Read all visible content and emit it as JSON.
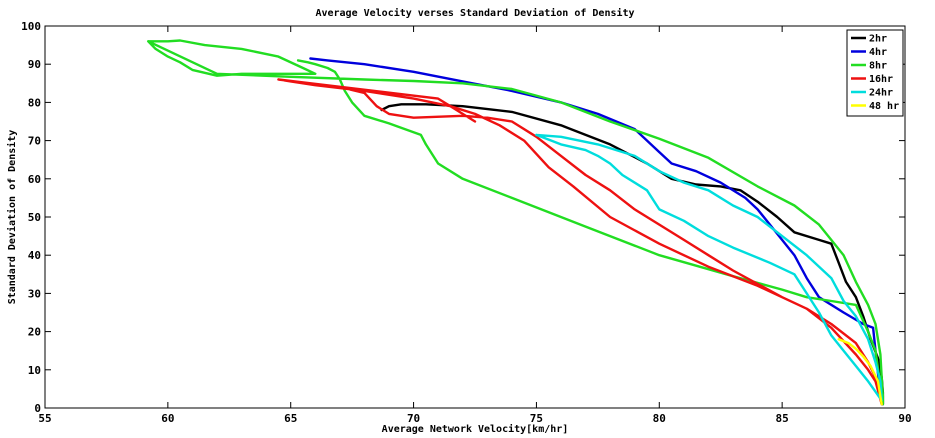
{
  "chart_data": {
    "type": "line",
    "title": "Average Velocity verses Standard Deviation of Density",
    "xlabel": "Average Network Velocity[km/hr]",
    "ylabel": "Standard Deviation of Density",
    "xlim": [
      55,
      90
    ],
    "ylim": [
      0,
      100
    ],
    "xticks": [
      55,
      60,
      65,
      70,
      75,
      80,
      85,
      90
    ],
    "yticks": [
      0,
      10,
      20,
      30,
      40,
      50,
      60,
      70,
      80,
      90,
      100
    ],
    "grid": false,
    "legend_position": "top-right",
    "series": [
      {
        "name": "2hr",
        "color": "#000000",
        "points": [
          [
            68.7,
            78
          ],
          [
            69,
            79
          ],
          [
            69.5,
            79.5
          ],
          [
            70.5,
            79.5
          ],
          [
            72,
            79
          ],
          [
            74,
            77.5
          ],
          [
            76,
            74
          ],
          [
            78,
            69
          ],
          [
            79.5,
            64
          ],
          [
            80.5,
            60
          ],
          [
            81.5,
            58.5
          ],
          [
            82.5,
            58
          ],
          [
            83.3,
            57
          ],
          [
            84,
            54
          ],
          [
            84.8,
            50
          ],
          [
            85.5,
            46
          ],
          [
            86.5,
            44
          ],
          [
            87,
            43
          ],
          [
            87.3,
            38
          ],
          [
            87.6,
            33
          ],
          [
            88,
            29
          ],
          [
            88.3,
            24
          ],
          [
            88.6,
            18
          ],
          [
            88.9,
            13
          ],
          [
            89.05,
            8
          ],
          [
            89.1,
            4
          ],
          [
            89.1,
            1
          ]
        ]
      },
      {
        "name": "4hr",
        "color": "#0000dd",
        "points": [
          [
            65.8,
            91.5
          ],
          [
            66.5,
            91
          ],
          [
            68,
            90
          ],
          [
            70,
            88
          ],
          [
            72,
            85.5
          ],
          [
            74,
            83
          ],
          [
            76,
            80
          ],
          [
            77.5,
            77
          ],
          [
            79,
            73
          ],
          [
            80,
            67
          ],
          [
            80.5,
            64
          ],
          [
            81.5,
            62
          ],
          [
            82.5,
            59
          ],
          [
            83.5,
            55
          ],
          [
            84,
            52
          ],
          [
            84.5,
            48
          ],
          [
            85,
            44
          ],
          [
            85.5,
            40
          ],
          [
            86,
            34
          ],
          [
            86.5,
            29
          ],
          [
            87.5,
            25
          ],
          [
            88.3,
            22
          ],
          [
            88.7,
            21
          ],
          [
            88.8,
            15
          ],
          [
            88.9,
            9
          ],
          [
            89,
            4
          ],
          [
            89.05,
            1
          ]
        ]
      },
      {
        "name": "8hr",
        "color": "#22dd22",
        "points": [
          [
            59.2,
            96
          ],
          [
            60,
            96
          ],
          [
            60.5,
            96.2
          ],
          [
            61.5,
            95
          ],
          [
            63,
            94
          ],
          [
            64.5,
            92
          ],
          [
            65.5,
            89
          ],
          [
            66,
            87.5
          ],
          [
            65.5,
            87.5
          ],
          [
            63,
            87.5
          ],
          [
            62,
            87
          ],
          [
            61,
            88.5
          ],
          [
            60.5,
            90.5
          ],
          [
            60,
            92
          ],
          [
            59.5,
            94
          ],
          [
            59.2,
            96
          ],
          [
            62,
            87.5
          ],
          [
            65,
            86.7
          ],
          [
            68,
            86
          ],
          [
            70,
            85.6
          ],
          [
            72,
            85
          ],
          [
            74,
            83.5
          ],
          [
            76,
            80
          ],
          [
            78,
            75
          ],
          [
            80,
            70.5
          ],
          [
            82,
            65.5
          ],
          [
            84,
            58
          ],
          [
            85.5,
            53
          ],
          [
            86.5,
            48
          ],
          [
            87.5,
            40
          ],
          [
            88,
            33
          ],
          [
            88.5,
            27
          ],
          [
            88.8,
            22
          ],
          [
            89,
            14
          ],
          [
            89.05,
            8
          ],
          [
            89.1,
            3
          ],
          [
            89.1,
            1
          ],
          [
            88.8,
            15
          ],
          [
            88.5,
            20
          ],
          [
            88,
            27
          ],
          [
            87,
            28
          ],
          [
            86,
            29
          ],
          [
            85,
            31
          ],
          [
            83,
            34.5
          ],
          [
            80,
            40
          ],
          [
            77,
            47.5
          ],
          [
            74,
            55
          ],
          [
            72,
            60
          ],
          [
            71,
            64
          ],
          [
            70.5,
            69
          ],
          [
            70.3,
            71.5
          ],
          [
            69,
            74.5
          ],
          [
            68,
            76.5
          ],
          [
            67.5,
            80
          ],
          [
            67.2,
            83
          ],
          [
            67,
            86
          ],
          [
            66.8,
            88
          ],
          [
            66.5,
            89
          ],
          [
            66,
            90
          ],
          [
            65.7,
            90.5
          ],
          [
            65.3,
            91
          ]
        ]
      },
      {
        "name": "16hr",
        "color": "#ee1111",
        "points": [
          [
            64.5,
            86
          ],
          [
            65,
            85.5
          ],
          [
            65.5,
            85
          ],
          [
            66,
            84.5
          ],
          [
            67,
            84
          ],
          [
            68,
            82.5
          ],
          [
            68.5,
            79
          ],
          [
            69,
            77
          ],
          [
            70,
            76
          ],
          [
            72,
            76.5
          ],
          [
            73,
            76
          ],
          [
            74,
            75
          ],
          [
            75,
            71
          ],
          [
            76,
            66
          ],
          [
            77,
            61
          ],
          [
            78,
            57
          ],
          [
            79,
            52
          ],
          [
            80,
            48
          ],
          [
            81,
            44
          ],
          [
            82,
            40
          ],
          [
            83,
            36
          ],
          [
            84,
            32.5
          ],
          [
            85,
            29
          ],
          [
            86,
            26
          ],
          [
            87,
            22
          ],
          [
            88,
            17
          ],
          [
            88.5,
            12
          ],
          [
            88.8,
            8
          ],
          [
            89,
            3
          ],
          [
            89.05,
            1
          ],
          [
            88.8,
            7
          ],
          [
            88.5,
            10
          ],
          [
            88,
            14
          ],
          [
            87,
            21
          ],
          [
            86,
            26
          ],
          [
            84,
            32
          ],
          [
            82,
            37
          ],
          [
            80,
            43
          ],
          [
            78,
            50
          ],
          [
            76.5,
            58
          ],
          [
            75.5,
            63
          ],
          [
            74.5,
            70
          ],
          [
            73.5,
            74
          ],
          [
            72.5,
            77
          ],
          [
            71.5,
            79
          ],
          [
            70,
            81
          ],
          [
            68,
            83
          ],
          [
            66,
            84.5
          ],
          [
            65,
            85.5
          ],
          [
            64.5,
            86
          ],
          [
            71,
            81
          ],
          [
            71.5,
            79
          ],
          [
            72,
            77
          ],
          [
            72.5,
            75
          ]
        ]
      },
      {
        "name": "24hr",
        "color": "#00dddd",
        "points": [
          [
            75,
            71.5
          ],
          [
            76,
            71
          ],
          [
            77.5,
            69
          ],
          [
            79,
            66
          ],
          [
            80,
            62
          ],
          [
            81,
            59
          ],
          [
            82,
            57
          ],
          [
            83,
            53
          ],
          [
            84,
            50
          ],
          [
            85,
            45
          ],
          [
            86,
            40
          ],
          [
            87,
            34
          ],
          [
            87.5,
            28
          ],
          [
            88,
            24
          ],
          [
            88.5,
            18
          ],
          [
            88.8,
            12
          ],
          [
            89,
            7
          ],
          [
            89.05,
            2
          ],
          [
            88.5,
            7
          ],
          [
            88,
            11
          ],
          [
            87.5,
            15
          ],
          [
            87,
            19
          ],
          [
            86.5,
            25
          ],
          [
            86,
            30
          ],
          [
            85.5,
            35
          ],
          [
            84.5,
            38
          ],
          [
            83,
            42
          ],
          [
            82,
            45
          ],
          [
            81,
            49
          ],
          [
            80,
            52
          ],
          [
            79.5,
            57
          ],
          [
            78.5,
            61
          ],
          [
            78,
            64
          ],
          [
            77.5,
            66
          ],
          [
            77,
            67.5
          ],
          [
            76,
            69
          ],
          [
            75,
            71.5
          ]
        ]
      },
      {
        "name": "48 hr",
        "color": "#ffff00",
        "points": [
          [
            87.3,
            18
          ],
          [
            87.7,
            17
          ],
          [
            88,
            15.5
          ],
          [
            88.3,
            13.5
          ],
          [
            88.6,
            11
          ],
          [
            88.9,
            7
          ],
          [
            89,
            3
          ],
          [
            89.05,
            1
          ]
        ]
      }
    ]
  }
}
